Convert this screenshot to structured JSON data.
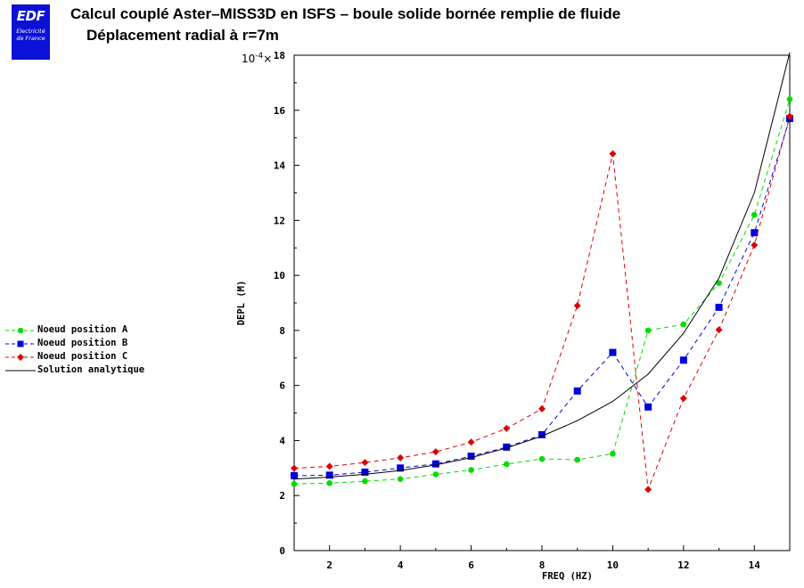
{
  "logo": {
    "brand": "EDF",
    "line1": "Electricité",
    "line2": "de France"
  },
  "header": {
    "title": "Calcul couplé Aster–MISS3D en ISFS – boule solide bornée remplie de fluide",
    "subtitle": "Déplacement radial à r=7m"
  },
  "chart_data": {
    "type": "line",
    "xlabel": "FREQ (HZ)",
    "ylabel": "DEPL (M)",
    "y_multiplier": "10^-4",
    "y_multiplier_base": "10",
    "y_multiplier_exp": "-4",
    "xlim": [
      1,
      15
    ],
    "ylim": [
      0,
      18
    ],
    "x_ticks": [
      "2",
      "4",
      "6",
      "8",
      "10",
      "12",
      "14"
    ],
    "y_ticks": [
      "0",
      "2",
      "4",
      "6",
      "8",
      "10",
      "12",
      "14",
      "16",
      "18"
    ],
    "legend_placement": "left",
    "grid": false,
    "series": [
      {
        "name": "Noeud position A",
        "color": "#00dd00",
        "marker": "circle",
        "dash": true,
        "x": [
          1,
          2,
          3,
          4,
          5,
          6,
          7,
          8,
          9,
          10,
          11,
          12,
          13,
          14,
          15
        ],
        "y": [
          2.42,
          2.45,
          2.52,
          2.6,
          2.77,
          2.93,
          3.14,
          3.33,
          3.3,
          3.52,
          8.0,
          8.22,
          9.72,
          12.2,
          16.4
        ]
      },
      {
        "name": "Noeud position B",
        "color": "#0000dd",
        "marker": "square",
        "dash": true,
        "x": [
          1,
          2,
          3,
          4,
          5,
          6,
          7,
          8,
          9,
          10,
          11,
          12,
          13,
          14,
          15
        ],
        "y": [
          2.72,
          2.74,
          2.85,
          3.0,
          3.15,
          3.43,
          3.76,
          4.21,
          5.8,
          7.2,
          5.22,
          6.92,
          8.84,
          11.55,
          15.7
        ]
      },
      {
        "name": "Noeud position C",
        "color": "#dd0000",
        "marker": "diamond",
        "dash": true,
        "x": [
          1,
          2,
          3,
          4,
          5,
          6,
          7,
          8,
          9,
          10,
          11,
          12,
          13,
          14,
          15
        ],
        "y": [
          2.99,
          3.06,
          3.2,
          3.37,
          3.59,
          3.94,
          4.44,
          5.15,
          8.9,
          14.42,
          2.22,
          5.53,
          8.02,
          11.1,
          15.78
        ]
      },
      {
        "name": "Solution analytique",
        "color": "#000000",
        "marker": "none",
        "dash": false,
        "x": [
          1,
          2,
          3,
          4,
          5,
          6,
          7,
          8,
          9,
          10,
          11,
          12,
          13,
          14,
          15
        ],
        "y": [
          2.6,
          2.67,
          2.77,
          2.91,
          3.11,
          3.38,
          3.73,
          4.16,
          4.72,
          5.42,
          6.41,
          7.9,
          9.9,
          13.0,
          18.1
        ]
      }
    ]
  }
}
